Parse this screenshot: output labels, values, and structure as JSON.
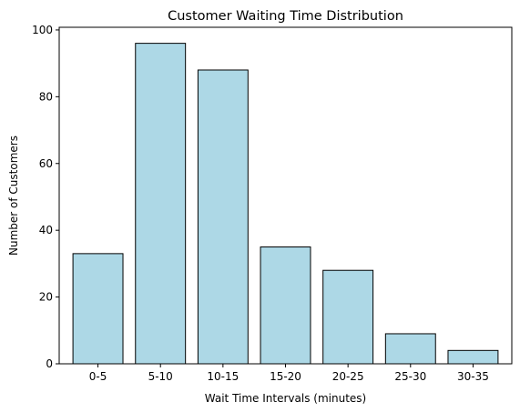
{
  "chart_data": {
    "type": "bar",
    "title": "Customer Waiting Time Distribution",
    "xlabel": "Wait Time Intervals (minutes)",
    "ylabel": "Number of Customers",
    "categories": [
      "0-5",
      "5-10",
      "10-15",
      "15-20",
      "20-25",
      "25-30",
      "30-35"
    ],
    "values": [
      33,
      96,
      88,
      35,
      28,
      9,
      4
    ],
    "ylim": [
      0,
      100.8
    ],
    "yticks": [
      0,
      20,
      40,
      60,
      80,
      100
    ],
    "grid": false,
    "bar_color": "#add8e6",
    "edge_color": "#000000"
  }
}
